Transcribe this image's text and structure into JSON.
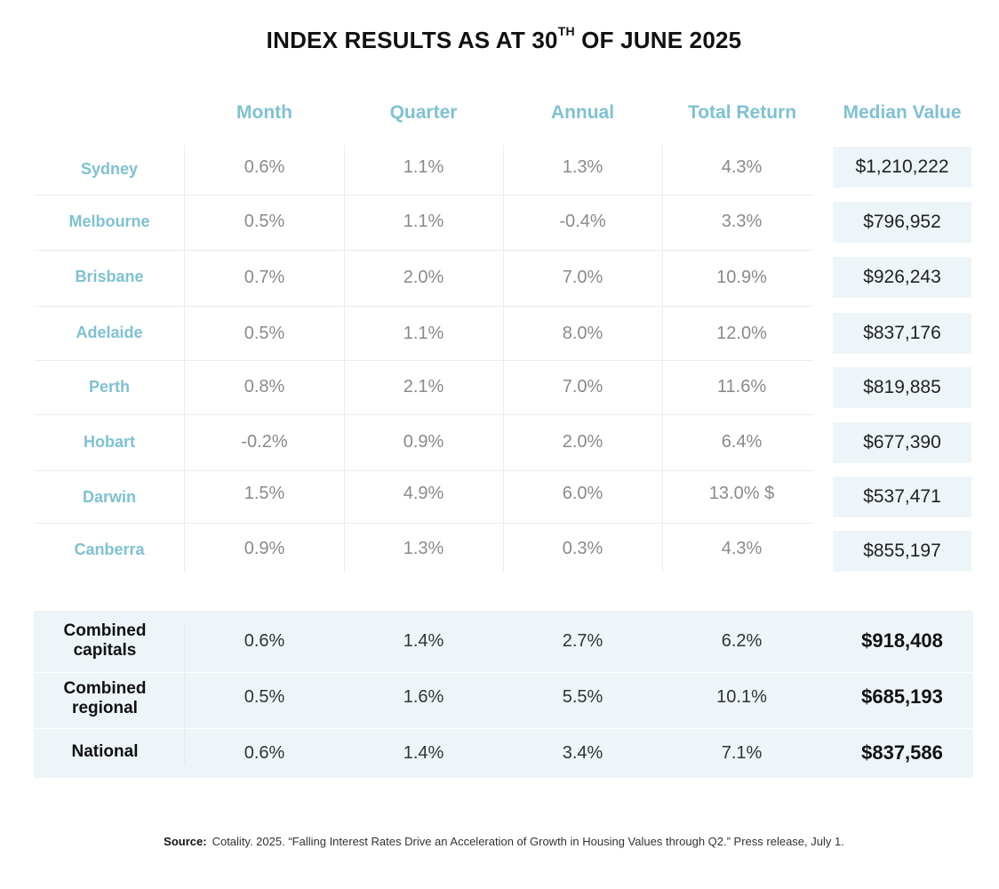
{
  "title": {
    "main": "INDEX RESULTS AS AT 30",
    "sup": "TH",
    "end": " OF JUNE 2025"
  },
  "columns": [
    "Month",
    "Quarter",
    "Annual",
    "Total Return",
    "Median Value"
  ],
  "rows": [
    {
      "city": "Sydney",
      "month": "0.6%",
      "quarter": "1.1%",
      "annual": "1.3%",
      "total": "4.3%",
      "median": "$1,210,222"
    },
    {
      "city": "Melbourne",
      "month": "0.5%",
      "quarter": "1.1%",
      "annual": "-0.4%",
      "total": "3.3%",
      "median": "$796,952"
    },
    {
      "city": "Brisbane",
      "month": "0.7%",
      "quarter": "2.0%",
      "annual": "7.0%",
      "total": "10.9%",
      "median": "$926,243"
    },
    {
      "city": "Adelaide",
      "month": "0.5%",
      "quarter": "1.1%",
      "annual": "8.0%",
      "total": "12.0%",
      "median": "$837,176"
    },
    {
      "city": "Perth",
      "month": "0.8%",
      "quarter": "2.1%",
      "annual": "7.0%",
      "total": "11.6%",
      "median": "$819,885"
    },
    {
      "city": "Hobart",
      "month": "-0.2%",
      "quarter": "0.9%",
      "annual": "2.0%",
      "total": "6.4%",
      "median": "$677,390"
    },
    {
      "city": "Darwin",
      "month": "1.5%",
      "quarter": "4.9%",
      "annual": "6.0%",
      "total": "13.0% $",
      "median": "$537,471"
    },
    {
      "city": "Canberra",
      "month": "0.9%",
      "quarter": "1.3%",
      "annual": "0.3%",
      "total": "4.3%",
      "median": "$855,197"
    }
  ],
  "summary": [
    {
      "label1": "Combined",
      "label2": "capitals",
      "month": "0.6%",
      "quarter": "1.4%",
      "annual": "2.7%",
      "total": "6.2%",
      "median": "$918,408"
    },
    {
      "label1": "Combined",
      "label2": "regional",
      "month": "0.5%",
      "quarter": "1.6%",
      "annual": "5.5%",
      "total": "10.1%",
      "median": "$685,193"
    },
    {
      "label1": "National",
      "label2": "",
      "month": "0.6%",
      "quarter": "1.4%",
      "annual": "3.4%",
      "total": "7.1%",
      "median": "$837,586"
    }
  ],
  "source": {
    "label": "Source:",
    "text": "Cotality. 2025. “Falling Interest Rates Drive an Acceleration of Growth in Housing Values through Q2.” Press release, July 1."
  },
  "colors": {
    "header": "#7fc1d3",
    "median_bg": "#eef5f8"
  }
}
